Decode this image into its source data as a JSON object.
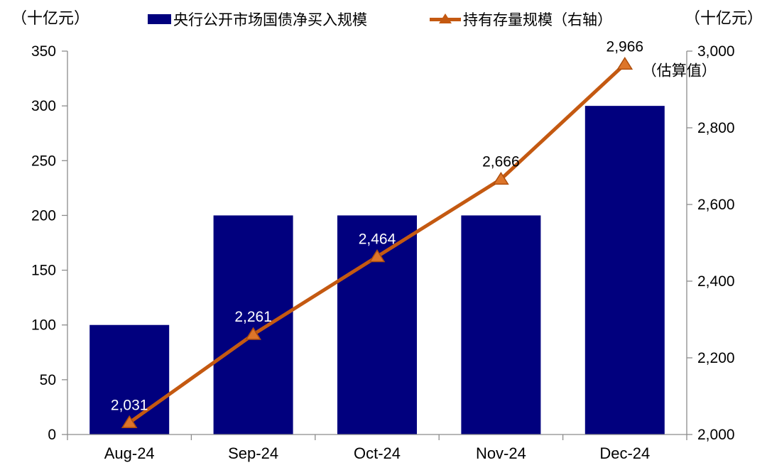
{
  "chart_data": {
    "type": "bar+line combo",
    "categories": [
      "Aug-24",
      "Sep-24",
      "Oct-24",
      "Nov-24",
      "Dec-24"
    ],
    "series": [
      {
        "name": "央行公开市场国债净买入规模",
        "type": "bar",
        "axis": "left",
        "color": "#01007E",
        "values": [
          100,
          200,
          200,
          200,
          300
        ]
      },
      {
        "name": "持有存量规模（右轴）",
        "type": "line",
        "axis": "right",
        "color": "#C45911",
        "marker": "triangle-up",
        "marker_fill": "#DD752A",
        "marker_stroke": "#AE4E0D",
        "values": [
          2031,
          2261,
          2464,
          2666,
          2966
        ],
        "data_labels": [
          "2,031",
          "2,261",
          "2,464",
          "2,666",
          "2,966"
        ],
        "data_label_colors": [
          "#ffffff",
          "#ffffff",
          "#ffffff",
          "#000000",
          "#000000"
        ]
      }
    ],
    "left_axis": {
      "title": "（十亿元）",
      "min": 0,
      "max": 350,
      "step": 50,
      "tick_values": [
        0,
        50,
        100,
        150,
        200,
        250,
        300,
        350
      ],
      "tick_labels": [
        "0",
        "50",
        "100",
        "150",
        "200",
        "250",
        "300",
        "350"
      ]
    },
    "right_axis": {
      "title": "（十亿元）",
      "min": 2000,
      "max": 3000,
      "step": 200,
      "tick_values": [
        2000,
        2200,
        2400,
        2600,
        2800,
        3000
      ],
      "tick_labels": [
        "2,000",
        "2,200",
        "2,400",
        "2,600",
        "2,800",
        "3,000"
      ]
    },
    "annotation": "（估算值）",
    "grid": false,
    "legend_position": "top",
    "axis_line_color": "#8C8C8C",
    "text_color": "#000000"
  }
}
